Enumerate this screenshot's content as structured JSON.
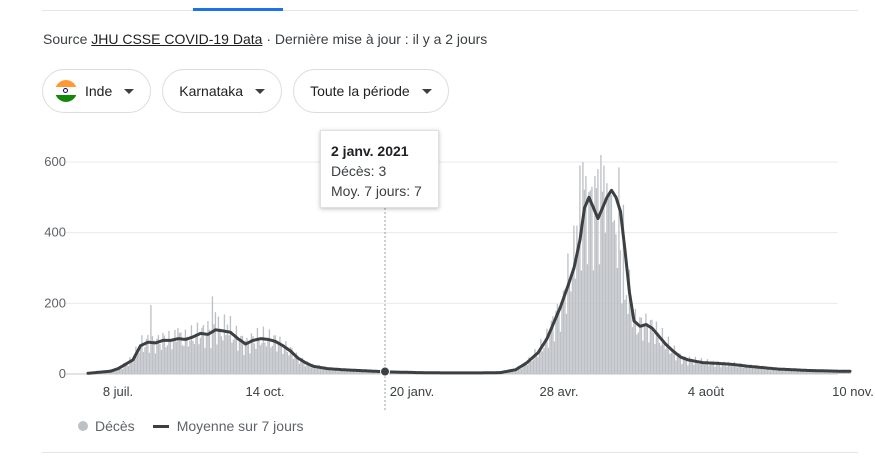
{
  "source": {
    "prefix": "Source",
    "link": "JHU CSSE COVID-19 Data",
    "suffix": "· Dernière mise à jour : il y a 2 jours"
  },
  "chips": [
    {
      "label": "Inde",
      "icon": "india-flag-icon"
    },
    {
      "label": "Karnataka"
    },
    {
      "label": "Toute la période"
    }
  ],
  "tooltip": {
    "date": "2 janv. 2021",
    "deaths": "Décès: 3",
    "avg": "Moy. 7 jours: 7"
  },
  "legend": {
    "deaths": "Décès",
    "average": "Moyenne sur 7 jours"
  },
  "colors": {
    "bars": "#bdc1c6",
    "line": "#3c4043",
    "grid": "#e8eaed",
    "accent": "#1a73e8"
  },
  "chart_data": {
    "type": "bar",
    "series_names": [
      "Décès",
      "Moyenne sur 7 jours"
    ],
    "yticks": [
      0,
      200,
      400,
      600
    ],
    "ylim": [
      0,
      640
    ],
    "xticks": [
      "8 juil.",
      "14 oct.",
      "20 janv.",
      "28 avr.",
      "4 août",
      "10 nov."
    ],
    "x_range_days_from_first_tick": [
      -20,
      490
    ],
    "xtick_spacing_days": 98,
    "highlight": {
      "label": "2 janv. 2021",
      "day": 178,
      "deaths": 3,
      "avg": 7
    },
    "avg_keypoints": [
      [
        -20,
        2
      ],
      [
        -5,
        8
      ],
      [
        0,
        15
      ],
      [
        10,
        40
      ],
      [
        15,
        80
      ],
      [
        20,
        90
      ],
      [
        25,
        88
      ],
      [
        30,
        95
      ],
      [
        35,
        95
      ],
      [
        40,
        100
      ],
      [
        45,
        98
      ],
      [
        50,
        105
      ],
      [
        55,
        115
      ],
      [
        60,
        112
      ],
      [
        65,
        125
      ],
      [
        70,
        122
      ],
      [
        75,
        118
      ],
      [
        80,
        100
      ],
      [
        85,
        85
      ],
      [
        90,
        95
      ],
      [
        95,
        100
      ],
      [
        100,
        98
      ],
      [
        105,
        92
      ],
      [
        110,
        80
      ],
      [
        115,
        65
      ],
      [
        120,
        45
      ],
      [
        125,
        32
      ],
      [
        130,
        22
      ],
      [
        140,
        15
      ],
      [
        150,
        12
      ],
      [
        160,
        10
      ],
      [
        170,
        8
      ],
      [
        180,
        6
      ],
      [
        190,
        5
      ],
      [
        200,
        4
      ],
      [
        220,
        3
      ],
      [
        240,
        3
      ],
      [
        255,
        4
      ],
      [
        265,
        12
      ],
      [
        272,
        30
      ],
      [
        280,
        60
      ],
      [
        286,
        100
      ],
      [
        290,
        140
      ],
      [
        295,
        190
      ],
      [
        300,
        250
      ],
      [
        304,
        300
      ],
      [
        308,
        380
      ],
      [
        311,
        470
      ],
      [
        314,
        500
      ],
      [
        317,
        470
      ],
      [
        320,
        440
      ],
      [
        323,
        470
      ],
      [
        326,
        500
      ],
      [
        329,
        520
      ],
      [
        332,
        500
      ],
      [
        335,
        460
      ],
      [
        338,
        350
      ],
      [
        341,
        230
      ],
      [
        344,
        150
      ],
      [
        348,
        135
      ],
      [
        352,
        140
      ],
      [
        356,
        130
      ],
      [
        360,
        110
      ],
      [
        365,
        85
      ],
      [
        370,
        65
      ],
      [
        375,
        48
      ],
      [
        380,
        40
      ],
      [
        390,
        32
      ],
      [
        400,
        30
      ],
      [
        410,
        27
      ],
      [
        420,
        22
      ],
      [
        430,
        18
      ],
      [
        440,
        14
      ],
      [
        450,
        12
      ],
      [
        460,
        10
      ],
      [
        470,
        9
      ],
      [
        480,
        8
      ],
      [
        488,
        8
      ]
    ],
    "bar_spikes": [
      [
        22,
        195
      ],
      [
        40,
        130
      ],
      [
        60,
        150
      ],
      [
        63,
        220
      ],
      [
        65,
        175
      ],
      [
        73,
        140
      ],
      [
        296,
        200
      ],
      [
        298,
        240
      ],
      [
        301,
        270
      ],
      [
        303,
        300
      ],
      [
        306,
        420
      ],
      [
        308,
        590
      ],
      [
        310,
        600
      ],
      [
        312,
        560
      ],
      [
        315,
        520
      ],
      [
        318,
        560
      ],
      [
        320,
        580
      ],
      [
        322,
        620
      ],
      [
        324,
        590
      ],
      [
        326,
        540
      ],
      [
        328,
        510
      ],
      [
        330,
        430
      ],
      [
        333,
        300
      ],
      [
        336,
        200
      ],
      [
        338,
        210
      ],
      [
        340,
        170
      ]
    ]
  }
}
